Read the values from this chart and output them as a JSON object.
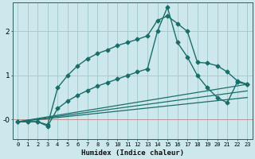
{
  "xlabel": "Humidex (Indice chaleur)",
  "bg_color": "#cce8ec",
  "line_color": "#1a6e6a",
  "grid_color": "#a0c8cc",
  "xlim": [
    -0.5,
    23.5
  ],
  "ylim": [
    -0.45,
    2.65
  ],
  "series": [
    {
      "x": [
        0,
        1,
        2,
        3,
        4,
        5,
        6,
        7,
        8,
        9,
        10,
        11,
        12,
        13,
        14,
        15,
        16,
        17,
        18,
        19,
        20,
        21,
        22,
        23
      ],
      "y": [
        -0.05,
        -0.05,
        -0.05,
        -0.12,
        0.72,
        1.0,
        1.22,
        1.38,
        1.5,
        1.58,
        1.68,
        1.75,
        1.82,
        1.9,
        2.25,
        2.35,
        2.18,
        2.0,
        1.3,
        1.28,
        1.22,
        1.08,
        0.88,
        0.8
      ],
      "marker": "D",
      "markersize": 2.5,
      "linewidth": 1.0
    },
    {
      "x": [
        0,
        1,
        2,
        3,
        4,
        5,
        6,
        7,
        8,
        9,
        10,
        11,
        12,
        13,
        14,
        15,
        16,
        17,
        18,
        19,
        20,
        21,
        22,
        23
      ],
      "y": [
        -0.05,
        -0.05,
        -0.05,
        -0.15,
        0.25,
        0.42,
        0.55,
        0.66,
        0.76,
        0.84,
        0.92,
        1.0,
        1.08,
        1.15,
        2.0,
        2.55,
        1.75,
        1.42,
        1.0,
        0.72,
        0.5,
        0.38,
        0.85,
        0.8
      ],
      "marker": "D",
      "markersize": 2.5,
      "linewidth": 1.0
    },
    {
      "x": [
        0,
        23
      ],
      "y": [
        -0.05,
        0.8
      ],
      "marker": null,
      "linewidth": 0.9
    },
    {
      "x": [
        0,
        23
      ],
      "y": [
        -0.05,
        0.65
      ],
      "marker": null,
      "linewidth": 0.9
    },
    {
      "x": [
        0,
        23
      ],
      "y": [
        -0.05,
        0.5
      ],
      "marker": null,
      "linewidth": 0.9
    }
  ]
}
